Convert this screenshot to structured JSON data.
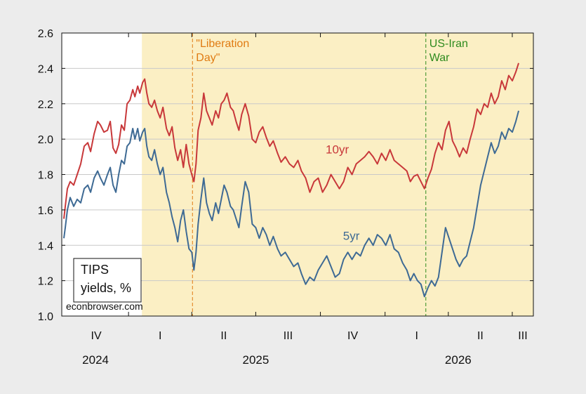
{
  "chart_data": {
    "type": "line",
    "ylim": [
      1.0,
      2.6
    ],
    "yticks": [
      "1.0",
      "1.2",
      "1.4",
      "1.6",
      "1.8",
      "2.0",
      "2.2",
      "2.4",
      "2.6"
    ],
    "quarter_labels": [
      "IV",
      "I",
      "II",
      "III",
      "IV",
      "I",
      "II",
      "III"
    ],
    "year_labels": [
      "2024",
      "2025",
      "2026"
    ],
    "note": {
      "line1": "TIPS",
      "line2": "yields, %",
      "source": "econbrowser.com"
    },
    "shaded_region": {
      "start": "2025-01-20",
      "end": "2026-07-31",
      "color": "#fbefc4"
    },
    "events": [
      {
        "line1": "\"Liberation",
        "line2": "Day\"",
        "date": "2025-04-02",
        "color": "#e07b12"
      },
      {
        "line1": "US-Iran",
        "line2": "War",
        "date": "2026-02-28",
        "color": "#2e8b1e"
      }
    ],
    "series": [
      {
        "name": "10yr",
        "color": "#c8383a",
        "points": [
          [
            "2024-10-01",
            1.55
          ],
          [
            "2024-10-03",
            1.62
          ],
          [
            "2024-10-06",
            1.72
          ],
          [
            "2024-10-10",
            1.76
          ],
          [
            "2024-10-15",
            1.74
          ],
          [
            "2024-10-20",
            1.8
          ],
          [
            "2024-10-25",
            1.86
          ],
          [
            "2024-10-30",
            1.96
          ],
          [
            "2024-11-04",
            1.98
          ],
          [
            "2024-11-08",
            1.93
          ],
          [
            "2024-11-13",
            2.03
          ],
          [
            "2024-11-18",
            2.1
          ],
          [
            "2024-11-22",
            2.08
          ],
          [
            "2024-11-27",
            2.04
          ],
          [
            "2024-12-02",
            2.05
          ],
          [
            "2024-12-06",
            2.1
          ],
          [
            "2024-12-10",
            1.95
          ],
          [
            "2024-12-14",
            1.92
          ],
          [
            "2024-12-18",
            1.97
          ],
          [
            "2024-12-22",
            2.08
          ],
          [
            "2024-12-26",
            2.05
          ],
          [
            "2024-12-30",
            2.2
          ],
          [
            "2025-01-03",
            2.22
          ],
          [
            "2025-01-07",
            2.28
          ],
          [
            "2025-01-10",
            2.24
          ],
          [
            "2025-01-14",
            2.3
          ],
          [
            "2025-01-17",
            2.26
          ],
          [
            "2025-01-21",
            2.32
          ],
          [
            "2025-01-24",
            2.34
          ],
          [
            "2025-01-27",
            2.26
          ],
          [
            "2025-01-30",
            2.2
          ],
          [
            "2025-02-03",
            2.18
          ],
          [
            "2025-02-07",
            2.22
          ],
          [
            "2025-02-11",
            2.16
          ],
          [
            "2025-02-15",
            2.12
          ],
          [
            "2025-02-19",
            2.18
          ],
          [
            "2025-02-24",
            2.06
          ],
          [
            "2025-02-28",
            2.02
          ],
          [
            "2025-03-04",
            2.07
          ],
          [
            "2025-03-08",
            1.95
          ],
          [
            "2025-03-12",
            1.88
          ],
          [
            "2025-03-16",
            1.94
          ],
          [
            "2025-03-20",
            1.84
          ],
          [
            "2025-03-24",
            1.97
          ],
          [
            "2025-03-28",
            1.86
          ],
          [
            "2025-04-01",
            1.8
          ],
          [
            "2025-04-04",
            1.76
          ],
          [
            "2025-04-07",
            1.86
          ],
          [
            "2025-04-10",
            2.05
          ],
          [
            "2025-04-14",
            2.12
          ],
          [
            "2025-04-18",
            2.26
          ],
          [
            "2025-04-22",
            2.16
          ],
          [
            "2025-04-26",
            2.12
          ],
          [
            "2025-04-30",
            2.08
          ],
          [
            "2025-05-05",
            2.16
          ],
          [
            "2025-05-09",
            2.12
          ],
          [
            "2025-05-13",
            2.2
          ],
          [
            "2025-05-17",
            2.22
          ],
          [
            "2025-05-21",
            2.26
          ],
          [
            "2025-05-26",
            2.18
          ],
          [
            "2025-05-30",
            2.16
          ],
          [
            "2025-06-03",
            2.1
          ],
          [
            "2025-06-07",
            2.05
          ],
          [
            "2025-06-11",
            2.14
          ],
          [
            "2025-06-16",
            2.2
          ],
          [
            "2025-06-21",
            2.13
          ],
          [
            "2025-06-26",
            2.0
          ],
          [
            "2025-07-01",
            1.98
          ],
          [
            "2025-07-06",
            2.04
          ],
          [
            "2025-07-11",
            2.07
          ],
          [
            "2025-07-16",
            2.01
          ],
          [
            "2025-07-21",
            1.96
          ],
          [
            "2025-07-26",
            1.99
          ],
          [
            "2025-08-01",
            1.92
          ],
          [
            "2025-08-06",
            1.87
          ],
          [
            "2025-08-12",
            1.9
          ],
          [
            "2025-08-18",
            1.86
          ],
          [
            "2025-08-24",
            1.84
          ],
          [
            "2025-08-30",
            1.88
          ],
          [
            "2025-09-04",
            1.82
          ],
          [
            "2025-09-10",
            1.78
          ],
          [
            "2025-09-16",
            1.7
          ],
          [
            "2025-09-22",
            1.76
          ],
          [
            "2025-09-28",
            1.78
          ],
          [
            "2025-10-04",
            1.7
          ],
          [
            "2025-10-10",
            1.74
          ],
          [
            "2025-10-16",
            1.8
          ],
          [
            "2025-10-22",
            1.76
          ],
          [
            "2025-10-28",
            1.72
          ],
          [
            "2025-11-03",
            1.76
          ],
          [
            "2025-11-09",
            1.84
          ],
          [
            "2025-11-15",
            1.8
          ],
          [
            "2025-11-21",
            1.86
          ],
          [
            "2025-11-27",
            1.88
          ],
          [
            "2025-12-03",
            1.9
          ],
          [
            "2025-12-09",
            1.93
          ],
          [
            "2025-12-15",
            1.9
          ],
          [
            "2025-12-21",
            1.86
          ],
          [
            "2025-12-27",
            1.92
          ],
          [
            "2026-01-02",
            1.88
          ],
          [
            "2026-01-08",
            1.94
          ],
          [
            "2026-01-14",
            1.88
          ],
          [
            "2026-01-20",
            1.86
          ],
          [
            "2026-01-26",
            1.84
          ],
          [
            "2026-02-01",
            1.82
          ],
          [
            "2026-02-06",
            1.76
          ],
          [
            "2026-02-11",
            1.79
          ],
          [
            "2026-02-16",
            1.8
          ],
          [
            "2026-02-21",
            1.76
          ],
          [
            "2026-02-26",
            1.72
          ],
          [
            "2026-03-03",
            1.78
          ],
          [
            "2026-03-08",
            1.83
          ],
          [
            "2026-03-13",
            1.92
          ],
          [
            "2026-03-18",
            1.98
          ],
          [
            "2026-03-23",
            1.94
          ],
          [
            "2026-03-28",
            2.05
          ],
          [
            "2026-04-02",
            2.1
          ],
          [
            "2026-04-07",
            1.99
          ],
          [
            "2026-04-12",
            1.95
          ],
          [
            "2026-04-17",
            1.9
          ],
          [
            "2026-04-22",
            1.95
          ],
          [
            "2026-04-27",
            1.92
          ],
          [
            "2026-05-02",
            2.0
          ],
          [
            "2026-05-07",
            2.07
          ],
          [
            "2026-05-12",
            2.17
          ],
          [
            "2026-05-17",
            2.14
          ],
          [
            "2026-05-22",
            2.2
          ],
          [
            "2026-05-27",
            2.18
          ],
          [
            "2026-06-01",
            2.26
          ],
          [
            "2026-06-06",
            2.2
          ],
          [
            "2026-06-11",
            2.24
          ],
          [
            "2026-06-16",
            2.33
          ],
          [
            "2026-06-21",
            2.28
          ],
          [
            "2026-06-26",
            2.36
          ],
          [
            "2026-07-01",
            2.33
          ],
          [
            "2026-07-06",
            2.38
          ],
          [
            "2026-07-10",
            2.43
          ]
        ]
      },
      {
        "name": "5yr",
        "color": "#3e6a94",
        "points": [
          [
            "2024-10-01",
            1.44
          ],
          [
            "2024-10-03",
            1.5
          ],
          [
            "2024-10-06",
            1.6
          ],
          [
            "2024-10-10",
            1.67
          ],
          [
            "2024-10-15",
            1.62
          ],
          [
            "2024-10-20",
            1.66
          ],
          [
            "2024-10-25",
            1.64
          ],
          [
            "2024-10-30",
            1.72
          ],
          [
            "2024-11-04",
            1.74
          ],
          [
            "2024-11-08",
            1.7
          ],
          [
            "2024-11-13",
            1.78
          ],
          [
            "2024-11-18",
            1.82
          ],
          [
            "2024-11-22",
            1.78
          ],
          [
            "2024-11-27",
            1.74
          ],
          [
            "2024-12-02",
            1.8
          ],
          [
            "2024-12-06",
            1.84
          ],
          [
            "2024-12-10",
            1.74
          ],
          [
            "2024-12-14",
            1.7
          ],
          [
            "2024-12-18",
            1.8
          ],
          [
            "2024-12-22",
            1.88
          ],
          [
            "2024-12-26",
            1.86
          ],
          [
            "2024-12-30",
            1.96
          ],
          [
            "2025-01-03",
            1.98
          ],
          [
            "2025-01-07",
            2.06
          ],
          [
            "2025-01-10",
            2.0
          ],
          [
            "2025-01-14",
            2.06
          ],
          [
            "2025-01-17",
            1.99
          ],
          [
            "2025-01-21",
            2.04
          ],
          [
            "2025-01-24",
            2.06
          ],
          [
            "2025-01-27",
            1.96
          ],
          [
            "2025-01-30",
            1.9
          ],
          [
            "2025-02-03",
            1.88
          ],
          [
            "2025-02-07",
            1.94
          ],
          [
            "2025-02-11",
            1.86
          ],
          [
            "2025-02-15",
            1.8
          ],
          [
            "2025-02-19",
            1.84
          ],
          [
            "2025-02-24",
            1.7
          ],
          [
            "2025-02-28",
            1.64
          ],
          [
            "2025-03-04",
            1.56
          ],
          [
            "2025-03-08",
            1.5
          ],
          [
            "2025-03-12",
            1.42
          ],
          [
            "2025-03-16",
            1.54
          ],
          [
            "2025-03-20",
            1.6
          ],
          [
            "2025-03-24",
            1.48
          ],
          [
            "2025-03-28",
            1.38
          ],
          [
            "2025-04-01",
            1.36
          ],
          [
            "2025-04-04",
            1.26
          ],
          [
            "2025-04-07",
            1.36
          ],
          [
            "2025-04-10",
            1.52
          ],
          [
            "2025-04-14",
            1.66
          ],
          [
            "2025-04-18",
            1.78
          ],
          [
            "2025-04-22",
            1.64
          ],
          [
            "2025-04-26",
            1.58
          ],
          [
            "2025-04-30",
            1.54
          ],
          [
            "2025-05-05",
            1.64
          ],
          [
            "2025-05-09",
            1.58
          ],
          [
            "2025-05-13",
            1.66
          ],
          [
            "2025-05-17",
            1.74
          ],
          [
            "2025-05-21",
            1.7
          ],
          [
            "2025-05-26",
            1.62
          ],
          [
            "2025-05-30",
            1.6
          ],
          [
            "2025-06-03",
            1.55
          ],
          [
            "2025-06-07",
            1.5
          ],
          [
            "2025-06-11",
            1.62
          ],
          [
            "2025-06-16",
            1.76
          ],
          [
            "2025-06-21",
            1.7
          ],
          [
            "2025-06-26",
            1.52
          ],
          [
            "2025-07-01",
            1.5
          ],
          [
            "2025-07-06",
            1.44
          ],
          [
            "2025-07-11",
            1.5
          ],
          [
            "2025-07-16",
            1.46
          ],
          [
            "2025-07-21",
            1.4
          ],
          [
            "2025-07-26",
            1.45
          ],
          [
            "2025-08-01",
            1.38
          ],
          [
            "2025-08-06",
            1.34
          ],
          [
            "2025-08-12",
            1.36
          ],
          [
            "2025-08-18",
            1.32
          ],
          [
            "2025-08-24",
            1.28
          ],
          [
            "2025-08-30",
            1.3
          ],
          [
            "2025-09-04",
            1.24
          ],
          [
            "2025-09-10",
            1.18
          ],
          [
            "2025-09-16",
            1.22
          ],
          [
            "2025-09-22",
            1.2
          ],
          [
            "2025-09-28",
            1.26
          ],
          [
            "2025-10-04",
            1.3
          ],
          [
            "2025-10-10",
            1.34
          ],
          [
            "2025-10-16",
            1.28
          ],
          [
            "2025-10-22",
            1.22
          ],
          [
            "2025-10-28",
            1.24
          ],
          [
            "2025-11-03",
            1.32
          ],
          [
            "2025-11-09",
            1.36
          ],
          [
            "2025-11-15",
            1.32
          ],
          [
            "2025-11-21",
            1.36
          ],
          [
            "2025-11-27",
            1.34
          ],
          [
            "2025-12-03",
            1.4
          ],
          [
            "2025-12-09",
            1.44
          ],
          [
            "2025-12-15",
            1.4
          ],
          [
            "2025-12-21",
            1.46
          ],
          [
            "2025-12-27",
            1.44
          ],
          [
            "2026-01-02",
            1.4
          ],
          [
            "2026-01-08",
            1.46
          ],
          [
            "2026-01-14",
            1.38
          ],
          [
            "2026-01-20",
            1.36
          ],
          [
            "2026-01-26",
            1.3
          ],
          [
            "2026-02-01",
            1.26
          ],
          [
            "2026-02-06",
            1.2
          ],
          [
            "2026-02-11",
            1.24
          ],
          [
            "2026-02-16",
            1.2
          ],
          [
            "2026-02-21",
            1.18
          ],
          [
            "2026-02-26",
            1.11
          ],
          [
            "2026-03-03",
            1.16
          ],
          [
            "2026-03-08",
            1.2
          ],
          [
            "2026-03-13",
            1.17
          ],
          [
            "2026-03-18",
            1.22
          ],
          [
            "2026-03-23",
            1.36
          ],
          [
            "2026-03-28",
            1.5
          ],
          [
            "2026-04-02",
            1.44
          ],
          [
            "2026-04-07",
            1.38
          ],
          [
            "2026-04-12",
            1.32
          ],
          [
            "2026-04-17",
            1.28
          ],
          [
            "2026-04-22",
            1.32
          ],
          [
            "2026-04-27",
            1.34
          ],
          [
            "2026-05-02",
            1.42
          ],
          [
            "2026-05-07",
            1.5
          ],
          [
            "2026-05-12",
            1.62
          ],
          [
            "2026-05-17",
            1.74
          ],
          [
            "2026-05-22",
            1.82
          ],
          [
            "2026-05-27",
            1.9
          ],
          [
            "2026-06-01",
            1.98
          ],
          [
            "2026-06-06",
            1.92
          ],
          [
            "2026-06-11",
            1.96
          ],
          [
            "2026-06-16",
            2.04
          ],
          [
            "2026-06-21",
            2.0
          ],
          [
            "2026-06-26",
            2.06
          ],
          [
            "2026-07-01",
            2.04
          ],
          [
            "2026-07-06",
            2.1
          ],
          [
            "2026-07-10",
            2.16
          ]
        ]
      }
    ],
    "series_label_positions": [
      {
        "series": 0,
        "date": "2025-10-25",
        "value": 1.92
      },
      {
        "series": 1,
        "date": "2025-11-14",
        "value": 1.43
      }
    ],
    "legend": "none"
  }
}
